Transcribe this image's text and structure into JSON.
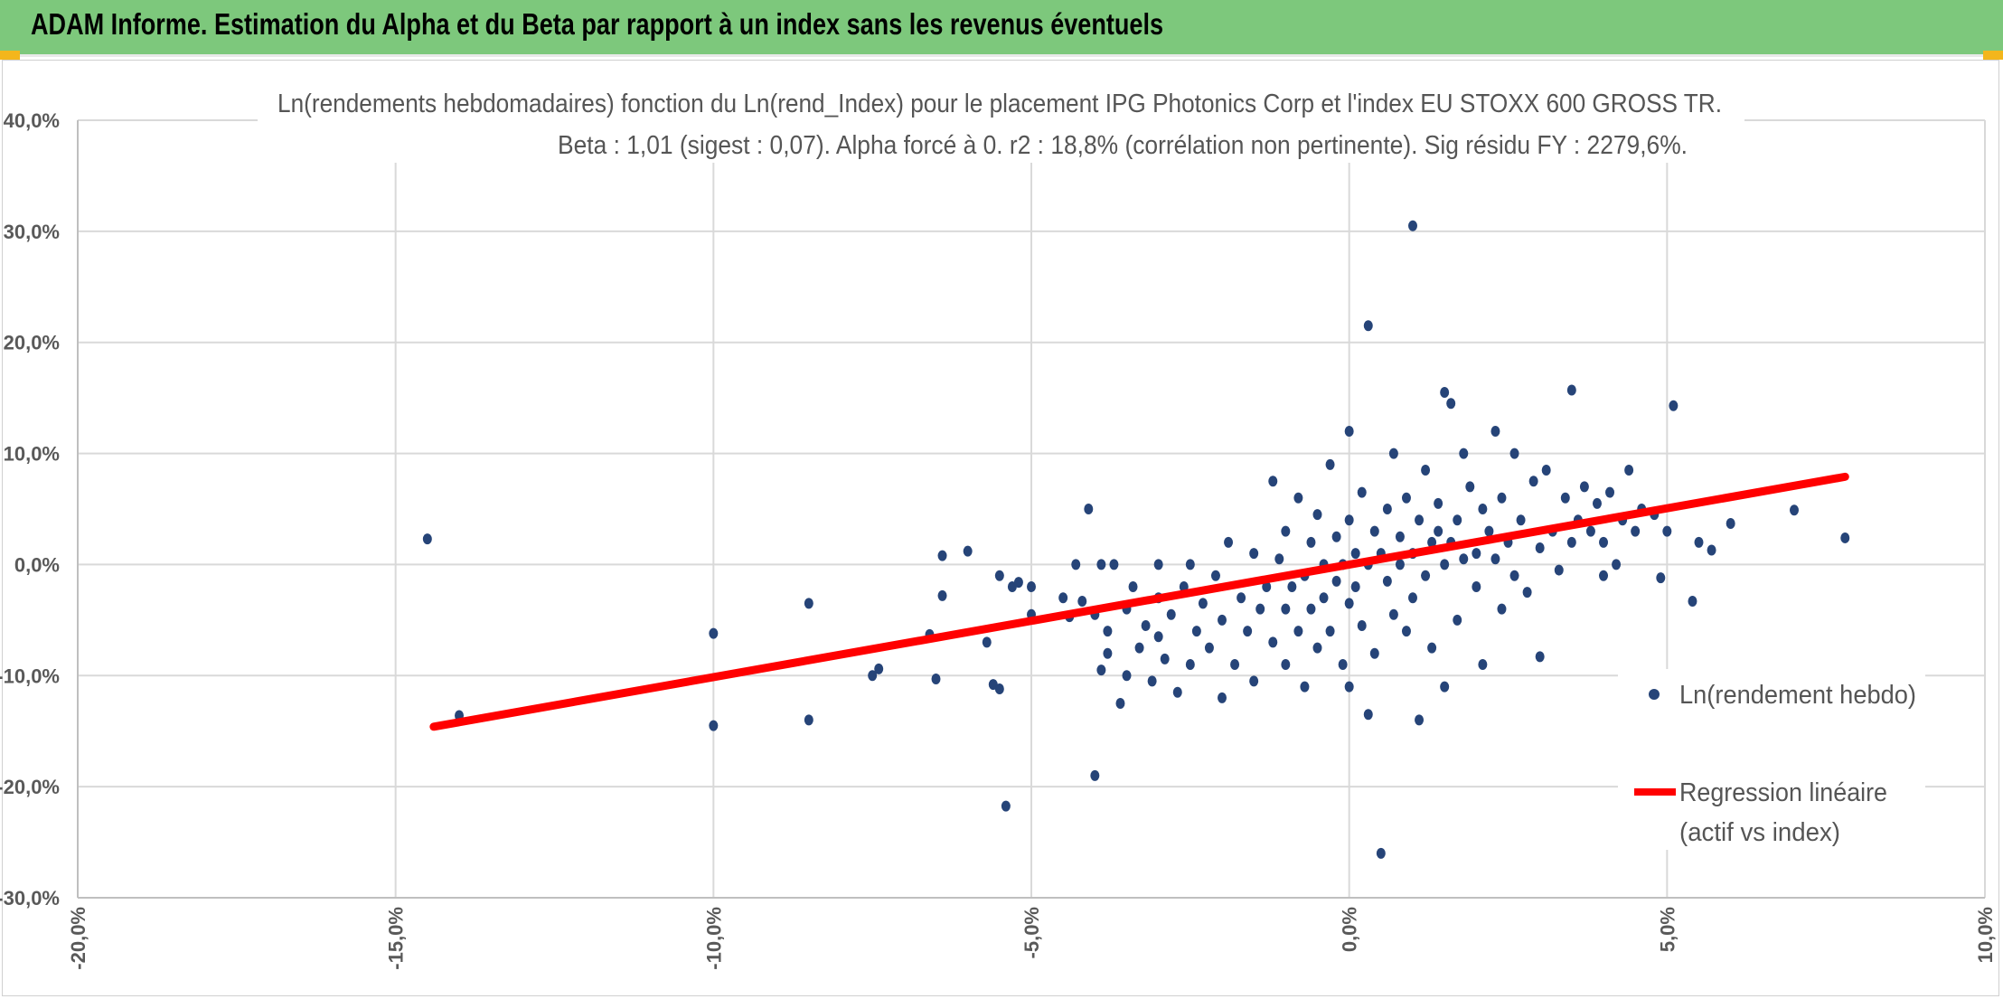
{
  "header": {
    "title": "ADAM Informe. Estimation du Alpha et du Beta par rapport à un index sans les revenus éventuels",
    "color": "#7dc87c",
    "corner_color": "#f3b61c"
  },
  "chart_data": {
    "type": "scatter",
    "title_line1": "Ln(rendements hebdomadaires) fonction du Ln(rend_Index) pour le placement IPG Photonics Corp et l'index EU STOXX 600 GROSS TR.",
    "title_line2": "Beta : 1,01 (sigest : 0,07). Alpha forcé à 0. r2 : 18,8% (corrélation non pertinente). Sig résidu FY : 2279,6%.",
    "xlim": [
      -0.2,
      0.1
    ],
    "ylim": [
      -0.3,
      0.4
    ],
    "x_ticks": [
      -0.2,
      -0.15,
      -0.1,
      -0.05,
      0.0,
      0.05,
      0.1
    ],
    "x_tick_labels": [
      "-20,0%",
      "-15,0%",
      "-10,0%",
      "-5,0%",
      "0,0%",
      "5,0%",
      "10,0%"
    ],
    "y_ticks": [
      -0.3,
      -0.2,
      -0.1,
      0.0,
      0.1,
      0.2,
      0.3,
      0.4
    ],
    "y_tick_labels": [
      "-30,0%",
      "-20,0%",
      "-10,0%",
      "0,0%",
      "10,0%",
      "20,0%",
      "30,0%",
      "40,0%"
    ],
    "grid": true,
    "legend_position": "right",
    "series": [
      {
        "name": "Ln(rendement hebdo)",
        "kind": "scatter",
        "color": "#264478",
        "points": [
          [
            -0.145,
            0.023
          ],
          [
            -0.14,
            -0.136
          ],
          [
            -0.1,
            -0.062
          ],
          [
            -0.1,
            -0.145
          ],
          [
            -0.085,
            -0.035
          ],
          [
            -0.085,
            -0.14
          ],
          [
            -0.075,
            -0.1
          ],
          [
            -0.074,
            -0.094
          ],
          [
            -0.066,
            -0.063
          ],
          [
            -0.065,
            -0.103
          ],
          [
            -0.064,
            -0.028
          ],
          [
            -0.064,
            0.008
          ],
          [
            -0.06,
            0.012
          ],
          [
            -0.057,
            -0.07
          ],
          [
            -0.056,
            -0.108
          ],
          [
            -0.055,
            -0.112
          ],
          [
            -0.055,
            -0.01
          ],
          [
            -0.054,
            -0.2175
          ],
          [
            -0.053,
            -0.02
          ],
          [
            -0.052,
            -0.016
          ],
          [
            -0.05,
            -0.045
          ],
          [
            -0.05,
            -0.02
          ],
          [
            -0.045,
            -0.03
          ],
          [
            -0.044,
            -0.047
          ],
          [
            -0.043,
            0.0
          ],
          [
            -0.042,
            -0.033
          ],
          [
            -0.041,
            0.05
          ],
          [
            -0.04,
            -0.045
          ],
          [
            -0.04,
            -0.19
          ],
          [
            -0.039,
            -0.095
          ],
          [
            -0.039,
            0.0
          ],
          [
            -0.038,
            -0.06
          ],
          [
            -0.038,
            -0.08
          ],
          [
            -0.037,
            0.0
          ],
          [
            -0.036,
            -0.125
          ],
          [
            -0.035,
            -0.1
          ],
          [
            -0.035,
            -0.04
          ],
          [
            -0.034,
            -0.02
          ],
          [
            -0.033,
            -0.075
          ],
          [
            -0.032,
            -0.055
          ],
          [
            -0.031,
            -0.105
          ],
          [
            -0.03,
            -0.03
          ],
          [
            -0.03,
            -0.065
          ],
          [
            -0.03,
            0.0
          ],
          [
            -0.029,
            -0.085
          ],
          [
            -0.028,
            -0.045
          ],
          [
            -0.027,
            -0.115
          ],
          [
            -0.026,
            -0.02
          ],
          [
            -0.025,
            -0.09
          ],
          [
            -0.025,
            0.0
          ],
          [
            -0.024,
            -0.06
          ],
          [
            -0.023,
            -0.035
          ],
          [
            -0.022,
            -0.075
          ],
          [
            -0.021,
            -0.01
          ],
          [
            -0.02,
            -0.12
          ],
          [
            -0.02,
            -0.05
          ],
          [
            -0.019,
            0.02
          ],
          [
            -0.018,
            -0.09
          ],
          [
            -0.017,
            -0.03
          ],
          [
            -0.016,
            -0.06
          ],
          [
            -0.015,
            0.01
          ],
          [
            -0.015,
            -0.105
          ],
          [
            -0.014,
            -0.04
          ],
          [
            -0.013,
            -0.02
          ],
          [
            -0.012,
            -0.07
          ],
          [
            -0.012,
            0.075
          ],
          [
            -0.011,
            0.005
          ],
          [
            -0.01,
            -0.09
          ],
          [
            -0.01,
            -0.04
          ],
          [
            -0.01,
            0.03
          ],
          [
            -0.009,
            -0.02
          ],
          [
            -0.008,
            -0.06
          ],
          [
            -0.008,
            0.06
          ],
          [
            -0.007,
            -0.01
          ],
          [
            -0.007,
            -0.11
          ],
          [
            -0.006,
            0.02
          ],
          [
            -0.006,
            -0.04
          ],
          [
            -0.005,
            -0.075
          ],
          [
            -0.005,
            0.045
          ],
          [
            -0.004,
            0.0
          ],
          [
            -0.004,
            -0.03
          ],
          [
            -0.003,
            0.09
          ],
          [
            -0.003,
            -0.06
          ],
          [
            -0.002,
            -0.015
          ],
          [
            -0.002,
            0.025
          ],
          [
            -0.001,
            -0.09
          ],
          [
            -0.001,
            0.0
          ],
          [
            0.0,
            0.04
          ],
          [
            0.0,
            -0.035
          ],
          [
            0.0,
            -0.11
          ],
          [
            0.0,
            0.12
          ],
          [
            0.001,
            0.01
          ],
          [
            0.001,
            -0.02
          ],
          [
            0.002,
            -0.055
          ],
          [
            0.002,
            0.065
          ],
          [
            0.003,
            0.0
          ],
          [
            0.003,
            0.215
          ],
          [
            0.003,
            -0.135
          ],
          [
            0.004,
            0.03
          ],
          [
            0.004,
            -0.08
          ],
          [
            0.005,
            0.01
          ],
          [
            0.005,
            -0.26
          ],
          [
            0.006,
            -0.015
          ],
          [
            0.006,
            0.05
          ],
          [
            0.007,
            0.1
          ],
          [
            0.007,
            -0.045
          ],
          [
            0.008,
            0.0
          ],
          [
            0.008,
            0.025
          ],
          [
            0.009,
            -0.06
          ],
          [
            0.009,
            0.06
          ],
          [
            0.01,
            0.01
          ],
          [
            0.01,
            -0.03
          ],
          [
            0.01,
            0.305
          ],
          [
            0.011,
            0.04
          ],
          [
            0.011,
            -0.14
          ],
          [
            0.012,
            0.085
          ],
          [
            0.012,
            -0.01
          ],
          [
            0.013,
            0.02
          ],
          [
            0.013,
            -0.075
          ],
          [
            0.014,
            0.03
          ],
          [
            0.014,
            0.055
          ],
          [
            0.015,
            0.0
          ],
          [
            0.015,
            -0.11
          ],
          [
            0.015,
            0.155
          ],
          [
            0.016,
            0.145
          ],
          [
            0.016,
            0.02
          ],
          [
            0.017,
            0.04
          ],
          [
            0.017,
            -0.05
          ],
          [
            0.018,
            0.1
          ],
          [
            0.018,
            0.005
          ],
          [
            0.019,
            0.07
          ],
          [
            0.02,
            0.01
          ],
          [
            0.02,
            -0.02
          ],
          [
            0.021,
            0.05
          ],
          [
            0.021,
            -0.09
          ],
          [
            0.022,
            0.03
          ],
          [
            0.023,
            0.005
          ],
          [
            0.023,
            0.12
          ],
          [
            0.024,
            -0.04
          ],
          [
            0.024,
            0.06
          ],
          [
            0.025,
            0.02
          ],
          [
            0.026,
            0.1
          ],
          [
            0.026,
            -0.01
          ],
          [
            0.027,
            0.04
          ],
          [
            0.028,
            -0.025
          ],
          [
            0.029,
            0.075
          ],
          [
            0.03,
            0.015
          ],
          [
            0.03,
            -0.083
          ],
          [
            0.031,
            0.085
          ],
          [
            0.032,
            0.03
          ],
          [
            0.033,
            -0.005
          ],
          [
            0.034,
            0.06
          ],
          [
            0.035,
            0.02
          ],
          [
            0.035,
            0.157
          ],
          [
            0.036,
            0.04
          ],
          [
            0.037,
            0.07
          ],
          [
            0.038,
            0.03
          ],
          [
            0.039,
            0.055
          ],
          [
            0.04,
            0.02
          ],
          [
            0.04,
            -0.01
          ],
          [
            0.041,
            0.065
          ],
          [
            0.042,
            0.0
          ],
          [
            0.043,
            0.04
          ],
          [
            0.044,
            0.085
          ],
          [
            0.045,
            0.03
          ],
          [
            0.046,
            0.05
          ],
          [
            0.048,
            0.045
          ],
          [
            0.048,
            -0.115
          ],
          [
            0.049,
            -0.012
          ],
          [
            0.05,
            0.03
          ],
          [
            0.051,
            0.143
          ],
          [
            0.054,
            -0.033
          ],
          [
            0.055,
            0.02
          ],
          [
            0.057,
            0.013
          ],
          [
            0.06,
            0.037
          ],
          [
            0.07,
            0.049
          ],
          [
            0.078,
            0.024
          ]
        ]
      },
      {
        "name": "Regression linéaire",
        "name_line2": "(actif vs index)",
        "kind": "line",
        "color": "#ff0000",
        "points": [
          [
            -0.144,
            -0.146
          ],
          [
            0.078,
            0.079
          ]
        ]
      }
    ]
  }
}
